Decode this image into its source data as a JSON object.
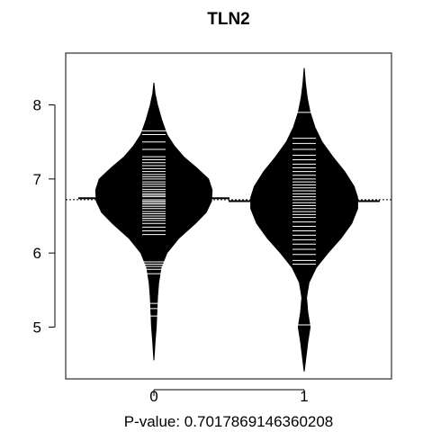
{
  "chart_data": {
    "type": "beanplot",
    "title": "TLN2",
    "xlabel": "P-value: 0.7017869146360208",
    "ylabel": "",
    "ylim": [
      4.3,
      8.7
    ],
    "yticks": [
      "5",
      "6",
      "7",
      "8"
    ],
    "categories": [
      "0",
      "1"
    ],
    "overall_mean": 6.72,
    "group_means": [
      6.74,
      6.7
    ],
    "groups": [
      {
        "category": "0",
        "density": [
          [
            4.55,
            0.0
          ],
          [
            4.8,
            0.02
          ],
          [
            5.0,
            0.04
          ],
          [
            5.2,
            0.05
          ],
          [
            5.4,
            0.06
          ],
          [
            5.6,
            0.08
          ],
          [
            5.8,
            0.12
          ],
          [
            6.0,
            0.22
          ],
          [
            6.2,
            0.42
          ],
          [
            6.4,
            0.7
          ],
          [
            6.55,
            0.88
          ],
          [
            6.7,
            0.97
          ],
          [
            6.85,
            0.98
          ],
          [
            7.0,
            0.92
          ],
          [
            7.15,
            0.72
          ],
          [
            7.3,
            0.5
          ],
          [
            7.45,
            0.34
          ],
          [
            7.6,
            0.22
          ],
          [
            7.8,
            0.13
          ],
          [
            8.0,
            0.06
          ],
          [
            8.15,
            0.02
          ],
          [
            8.3,
            0.0
          ]
        ],
        "observations": [
          5.15,
          5.25,
          5.32,
          5.72,
          5.78,
          5.82,
          5.85,
          5.88,
          6.25,
          6.3,
          6.35,
          6.4,
          6.44,
          6.47,
          6.5,
          6.53,
          6.56,
          6.6,
          6.63,
          6.66,
          6.68,
          6.7,
          6.72,
          6.74,
          6.76,
          6.78,
          6.8,
          6.83,
          6.86,
          6.9,
          6.93,
          6.96,
          7.0,
          7.03,
          7.06,
          7.1,
          7.14,
          7.18,
          7.22,
          7.26,
          7.3,
          7.4,
          7.5,
          7.6,
          7.65
        ]
      },
      {
        "category": "1",
        "density": [
          [
            4.4,
            0.0
          ],
          [
            4.6,
            0.03
          ],
          [
            4.8,
            0.06
          ],
          [
            5.0,
            0.1
          ],
          [
            5.2,
            0.06
          ],
          [
            5.4,
            0.04
          ],
          [
            5.6,
            0.08
          ],
          [
            5.8,
            0.2
          ],
          [
            6.0,
            0.4
          ],
          [
            6.2,
            0.62
          ],
          [
            6.4,
            0.8
          ],
          [
            6.6,
            0.9
          ],
          [
            6.75,
            0.9
          ],
          [
            6.9,
            0.84
          ],
          [
            7.1,
            0.68
          ],
          [
            7.3,
            0.48
          ],
          [
            7.5,
            0.3
          ],
          [
            7.7,
            0.18
          ],
          [
            7.9,
            0.1
          ],
          [
            8.1,
            0.05
          ],
          [
            8.3,
            0.02
          ],
          [
            8.5,
            0.0
          ]
        ],
        "observations": [
          5.03,
          5.85,
          5.9,
          5.98,
          6.05,
          6.12,
          6.18,
          6.24,
          6.3,
          6.36,
          6.42,
          6.48,
          6.52,
          6.56,
          6.6,
          6.64,
          6.68,
          6.72,
          6.76,
          6.8,
          6.84,
          6.88,
          6.92,
          6.96,
          7.0,
          7.05,
          7.1,
          7.15,
          7.2,
          7.26,
          7.32,
          7.4,
          7.48,
          7.55,
          7.9
        ]
      }
    ]
  }
}
